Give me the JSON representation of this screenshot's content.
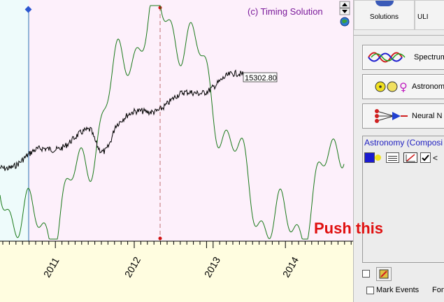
{
  "chart": {
    "watermark": "(c) Timing Solution",
    "price_label": "15302.80",
    "years": [
      "2011",
      "2012",
      "2013",
      "2014"
    ]
  },
  "sidebar": {
    "top_buttons": [
      "Solutions",
      "ULI"
    ],
    "module_buttons": [
      "Spectrum",
      "Astronomy",
      "Neural N"
    ],
    "panel_title": "Astronomy (Composi",
    "panel_arrow": "<",
    "mark_events": "Mark Events",
    "font_label": "Font"
  },
  "annotation": {
    "text": "Push this",
    "color": "#e01010"
  },
  "colors": {
    "chart_bg": "#fffde0",
    "plot_bg": "#fdf0fb",
    "left_band": "#eefbfb",
    "green_line": "#1a7a1a",
    "price_line": "#000000"
  }
}
